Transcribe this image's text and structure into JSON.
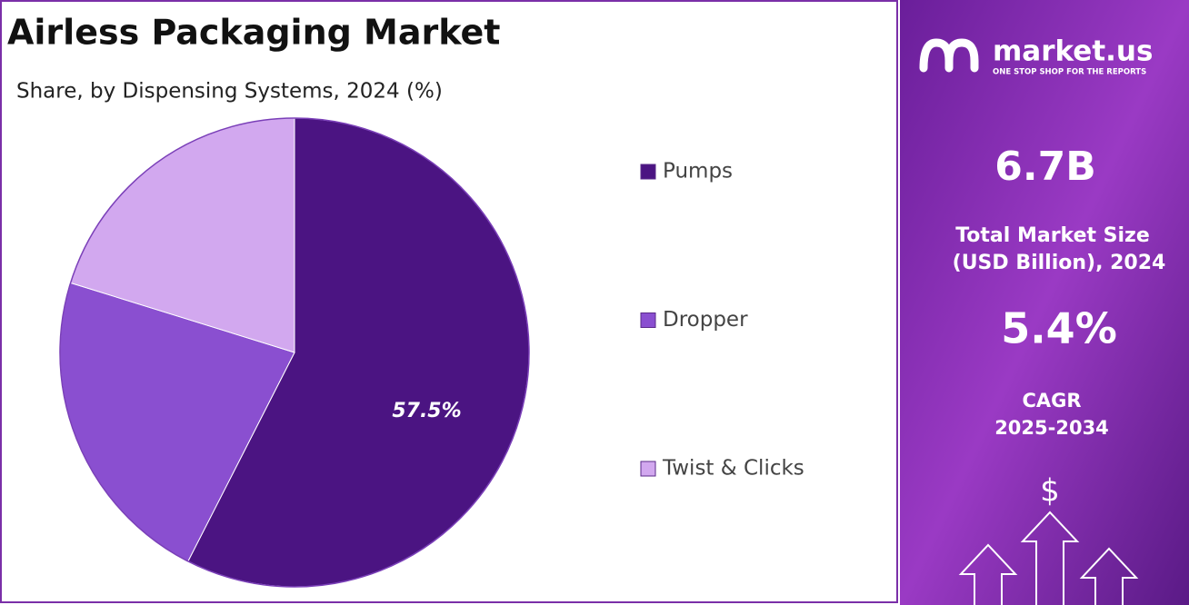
{
  "chart_data": {
    "type": "pie",
    "title": "Airless Packaging Market",
    "subtitle": "Share, by Dispensing Systems, 2024 (%)",
    "categories": [
      "Pumps",
      "Dropper",
      "Twist & Clicks"
    ],
    "values": [
      57.5,
      22.3,
      20.2
    ],
    "value_labels": [
      "57.5%",
      null,
      null
    ],
    "colors": [
      "#4b1482",
      "#8a4fd0",
      "#d2a8ef"
    ]
  },
  "panel": {
    "brand": "market.us",
    "tagline": "ONE STOP SHOP FOR THE REPORTS",
    "market_size": "6.7B",
    "market_size_label": [
      "Total Market Size",
      "(USD Billion), 2024"
    ],
    "cagr": "5.4%",
    "cagr_label": [
      "CAGR",
      "2025-2034"
    ]
  }
}
